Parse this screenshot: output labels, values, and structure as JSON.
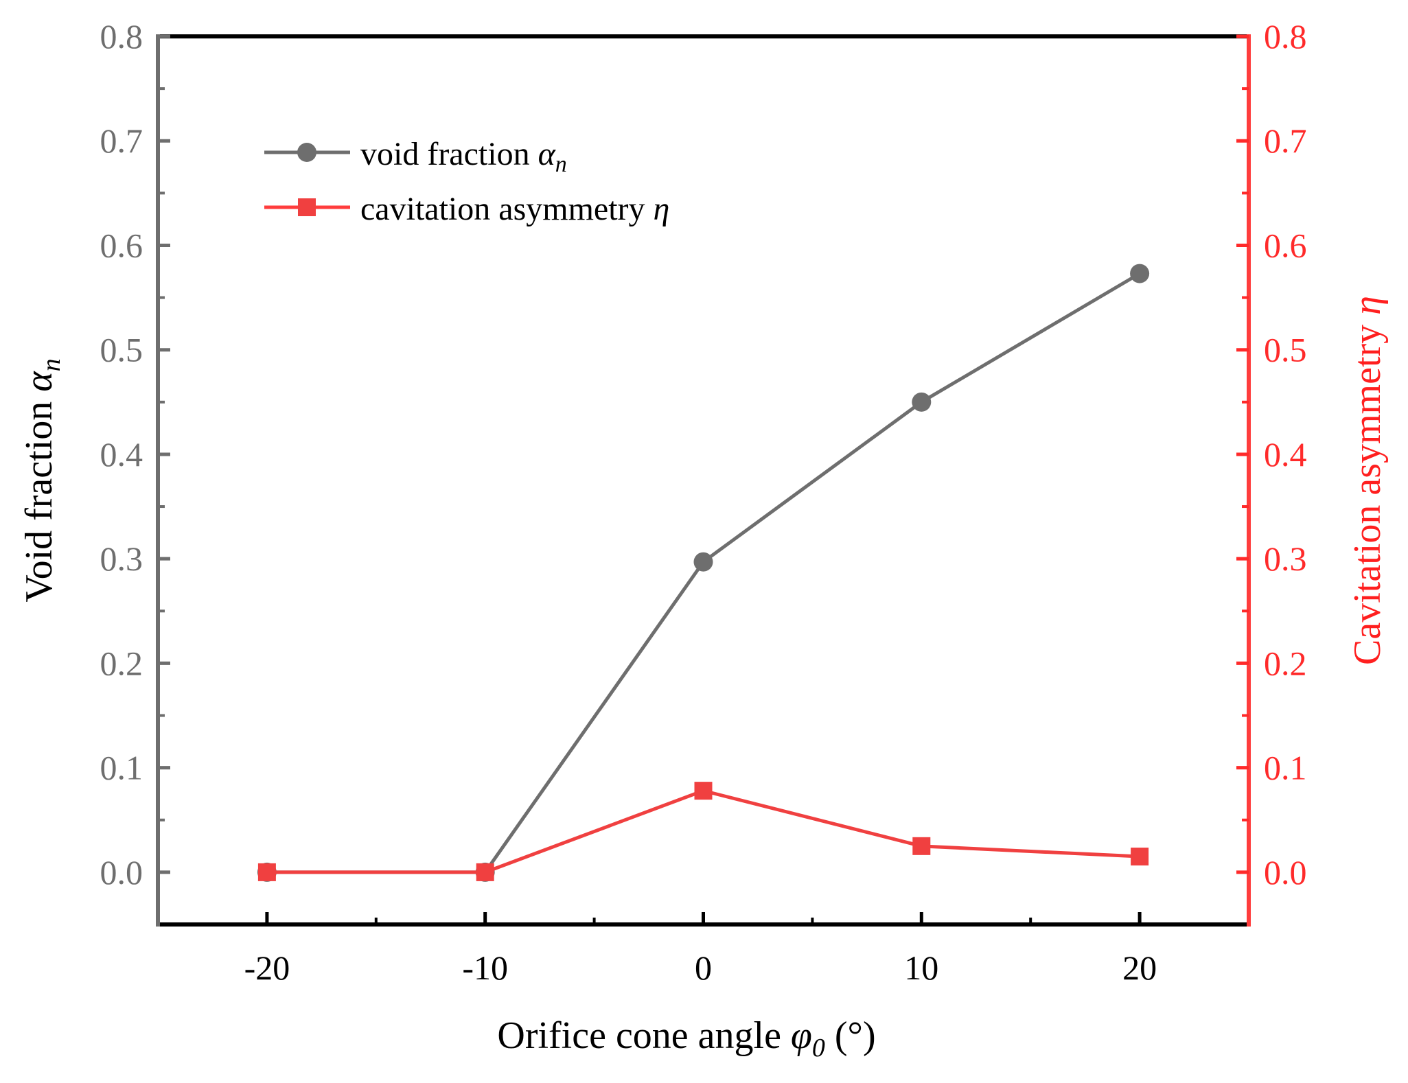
{
  "chart_data": {
    "type": "line",
    "x": [
      -20,
      -10,
      0,
      10,
      20
    ],
    "xlim": [
      -25,
      25
    ],
    "xticks": [
      -20,
      -10,
      0,
      10,
      20
    ],
    "xtick_labels": [
      "-20",
      "-10",
      "0",
      "10",
      "20"
    ],
    "xlabel": {
      "main": "Orifice cone angle ",
      "symbol": "φ",
      "subscript": "0",
      "unit": " (°)"
    },
    "left_axis": {
      "ylim": [
        -0.05,
        0.8
      ],
      "ticks": [
        0.0,
        0.1,
        0.2,
        0.3,
        0.4,
        0.5,
        0.6,
        0.7,
        0.8
      ],
      "tick_labels": [
        "0.0",
        "0.1",
        "0.2",
        "0.3",
        "0.4",
        "0.5",
        "0.6",
        "0.7",
        "0.8"
      ],
      "label_main": "Void fraction ",
      "label_symbol": "α",
      "label_subscript": "n",
      "color": "#6e6e6e"
    },
    "right_axis": {
      "ylim": [
        -0.05,
        0.8
      ],
      "ticks": [
        0.0,
        0.1,
        0.2,
        0.3,
        0.4,
        0.5,
        0.6,
        0.7,
        0.8
      ],
      "tick_labels": [
        "0.0",
        "0.1",
        "0.2",
        "0.3",
        "0.4",
        "0.5",
        "0.6",
        "0.7",
        "0.8"
      ],
      "label_main": "Cavitation asymmetry ",
      "label_symbol": "η",
      "color": "#ff2a2a"
    },
    "series": [
      {
        "name": "void fraction",
        "symbol": "α",
        "subscript": "n",
        "axis": "left",
        "marker": "circle",
        "color": "#6e6e6e",
        "values": [
          0.0,
          0.0,
          0.297,
          0.45,
          0.573
        ]
      },
      {
        "name": "cavitation asymmetry",
        "symbol": "η",
        "axis": "right",
        "marker": "square",
        "color": "#f04040",
        "values": [
          0.0,
          0.0,
          0.078,
          0.025,
          0.015
        ]
      }
    ],
    "legend_position": "top-left"
  }
}
